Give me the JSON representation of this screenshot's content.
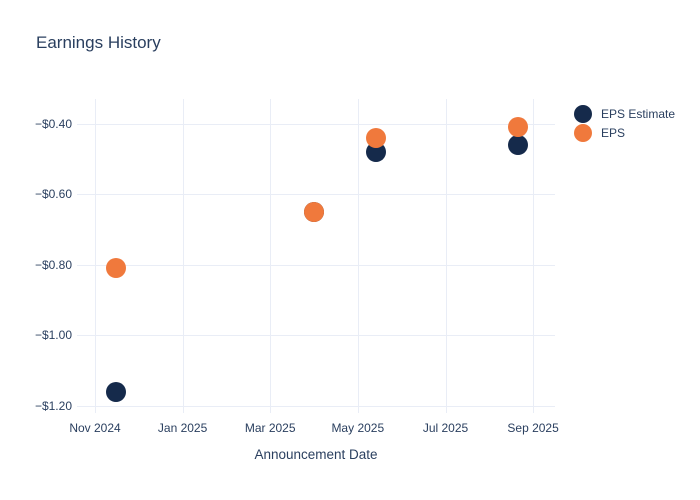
{
  "page": {
    "background_color": "#ffffff",
    "text_color": "#2a3f5f"
  },
  "chart_data": {
    "type": "scatter",
    "title": "Earnings History",
    "xlabel": "Announcement Date",
    "ylabel": "",
    "grid": true,
    "grid_color": "#e9edf6",
    "legend_position": "top-right-outside",
    "x_axis": {
      "unit": "months_since_Nov_2024",
      "range": [
        -0.41,
        10.5
      ],
      "ticks": [
        {
          "value": 0,
          "label": "Nov 2024"
        },
        {
          "value": 2,
          "label": "Jan 2025"
        },
        {
          "value": 4,
          "label": "Mar 2025"
        },
        {
          "value": 6,
          "label": "May 2025"
        },
        {
          "value": 8,
          "label": "Jul 2025"
        },
        {
          "value": 10,
          "label": "Sep 2025"
        }
      ]
    },
    "y_axis": {
      "range": [
        -1.22,
        -0.33
      ],
      "ticks": [
        {
          "value": -0.4,
          "label": "−$0.40"
        },
        {
          "value": -0.6,
          "label": "−$0.60"
        },
        {
          "value": -0.8,
          "label": "−$0.80"
        },
        {
          "value": -1.0,
          "label": "−$1.00"
        },
        {
          "value": -1.2,
          "label": "−$1.20"
        }
      ]
    },
    "series": [
      {
        "name": "EPS Estimate",
        "color": "#152a4b",
        "marker": "circle",
        "points": [
          {
            "x": 0.48,
            "approx_date": "mid-Nov 2024",
            "value": -1.16
          },
          {
            "x": 5.0,
            "approx_date": "early Apr 2025",
            "value": -0.65
          },
          {
            "x": 6.42,
            "approx_date": "mid-May 2025",
            "value": -0.48
          },
          {
            "x": 9.66,
            "approx_date": "late Aug 2025",
            "value": -0.46
          }
        ]
      },
      {
        "name": "EPS",
        "color": "#f0793c",
        "marker": "circle",
        "points": [
          {
            "x": 0.48,
            "approx_date": "mid-Nov 2024",
            "value": -0.81
          },
          {
            "x": 5.0,
            "approx_date": "early Apr 2025",
            "value": -0.65
          },
          {
            "x": 6.42,
            "approx_date": "mid-May 2025",
            "value": -0.44
          },
          {
            "x": 9.66,
            "approx_date": "late Aug 2025",
            "value": -0.41
          }
        ]
      }
    ]
  }
}
